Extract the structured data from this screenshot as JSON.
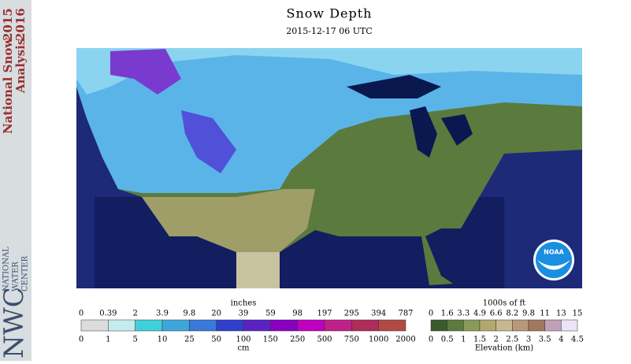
{
  "sidebar": {
    "title_line1": "National Snow",
    "title_line2": "Analysis",
    "year1": "2015",
    "year2": "2016",
    "logo": "NWC",
    "logo_lines": [
      "NATIONAL",
      "WATER",
      "CENTER"
    ]
  },
  "header": {
    "title": "Snow Depth",
    "subtitle": "2015-12-17 06 UTC"
  },
  "noaa": "NOAA",
  "snow_legend": {
    "unit_top": "inches",
    "unit_bottom": "cm",
    "top_labels": [
      "0",
      "0.39",
      "2",
      "3.9",
      "9.8",
      "20",
      "39",
      "59",
      "98",
      "197",
      "295",
      "394",
      "787"
    ],
    "bottom_labels": [
      "0",
      "1",
      "5",
      "10",
      "25",
      "50",
      "100",
      "150",
      "250",
      "500",
      "750",
      "1000",
      "2000"
    ],
    "colors": [
      "#dcdcdc",
      "#c4ecec",
      "#3fd0dc",
      "#3fa6dc",
      "#3a78dc",
      "#3040cc",
      "#5a22c4",
      "#8a00c0",
      "#c000c0",
      "#c0208a",
      "#b02c5a",
      "#b24a44"
    ]
  },
  "elev_legend": {
    "unit_top": "1000s of ft",
    "unit_bottom": "Elevation (km)",
    "top_labels": [
      "0",
      "1.6",
      "3.3",
      "4.9",
      "6.6",
      "8.2",
      "9.8",
      "11",
      "13",
      "15"
    ],
    "bottom_labels": [
      "0",
      "0.5",
      "1",
      "1.5",
      "2",
      "2.5",
      "3",
      "3.5",
      "4",
      "4.5"
    ],
    "colors": [
      "#3a5a2a",
      "#5c7a3c",
      "#8a9a5a",
      "#b0a870",
      "#c8b890",
      "#b89878",
      "#a07860",
      "#c0a0b8",
      "#ece4f4"
    ]
  }
}
